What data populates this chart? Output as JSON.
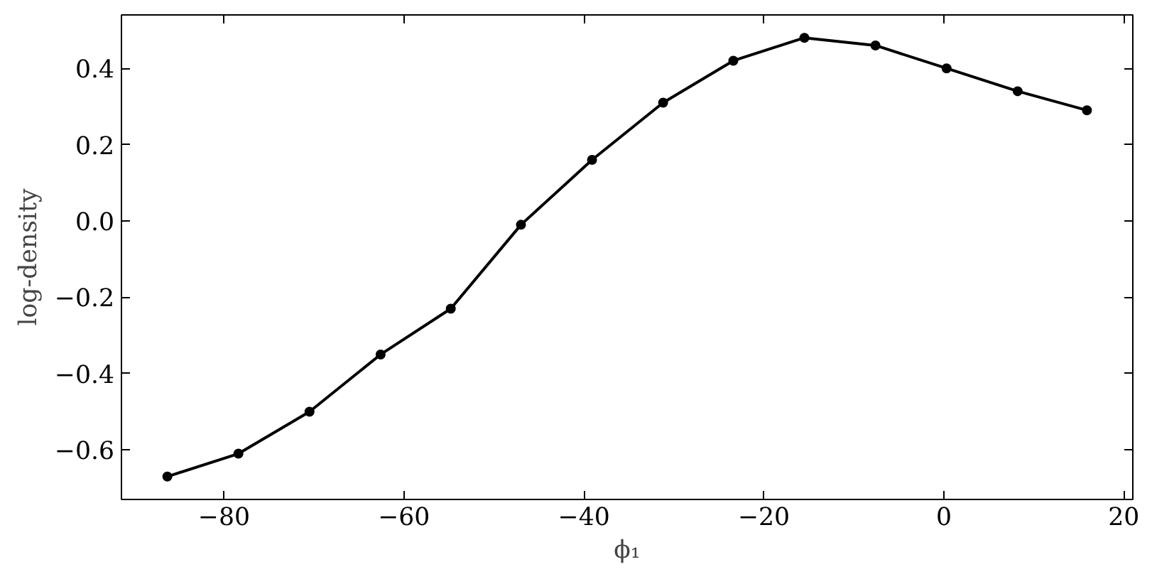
{
  "chart_data": {
    "type": "line",
    "xlabel": "ϕ₁",
    "ylabel": "log-density",
    "x": [
      -86.3,
      -78.4,
      -70.5,
      -62.6,
      -54.8,
      -47.0,
      -39.1,
      -31.2,
      -23.4,
      -15.5,
      -7.6,
      0.3,
      8.2,
      15.9
    ],
    "series": [
      {
        "color": "#000000",
        "values": [
          -0.67,
          -0.61,
          -0.5,
          -0.35,
          -0.23,
          -0.01,
          0.16,
          0.31,
          0.42,
          0.48,
          0.46,
          0.4,
          0.34,
          0.29
        ]
      }
    ],
    "xlim": [
      -91.4,
      21.0
    ],
    "ylim": [
      -0.73,
      0.54
    ],
    "xticks": [
      {
        "value": -80,
        "label": "−80"
      },
      {
        "value": -60,
        "label": "−60"
      },
      {
        "value": -40,
        "label": "−40"
      },
      {
        "value": -20,
        "label": "−20"
      },
      0,
      20
    ],
    "yticks": [
      {
        "value": -0.6,
        "label": "−0.6"
      },
      {
        "value": -0.4,
        "label": "−0.4"
      },
      {
        "value": -0.2,
        "label": "−0.2"
      },
      {
        "value": 0.0,
        "label": "0.0"
      },
      {
        "value": 0.2,
        "label": "0.2"
      },
      {
        "value": 0.4,
        "label": "0.4"
      }
    ],
    "grid": false,
    "marker": "circle",
    "line_style": "solid"
  }
}
